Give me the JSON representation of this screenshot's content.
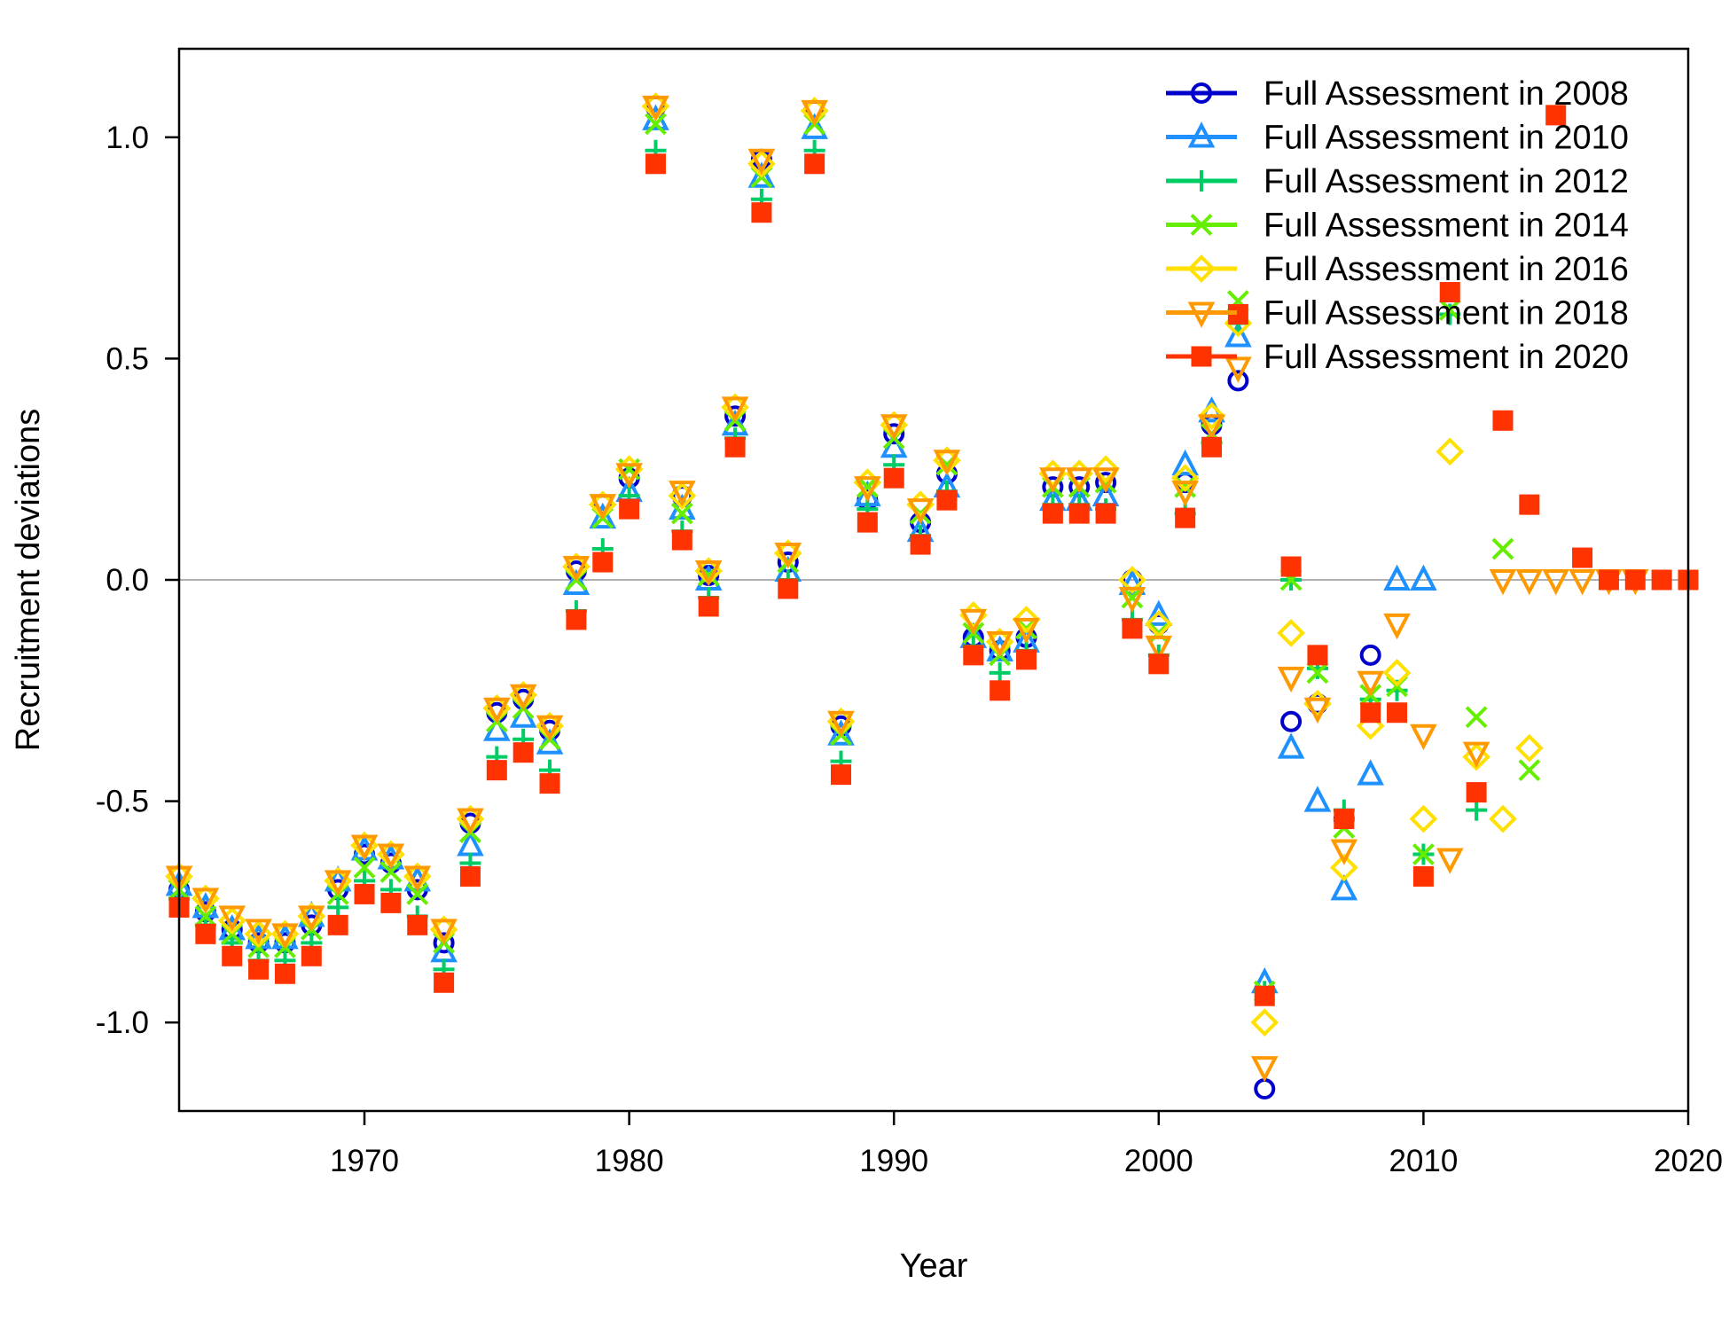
{
  "chart_data": {
    "type": "scatter",
    "title": "",
    "xlabel": "Year",
    "ylabel": "Recruitment deviations",
    "xlim": [
      1963,
      2020
    ],
    "ylim": [
      -1.2,
      1.2
    ],
    "xticks": [
      "1970",
      "1980",
      "1990",
      "2000",
      "2010",
      "2020"
    ],
    "yticks": [
      "-1.0",
      "-0.5",
      "0.0",
      "0.5",
      "1.0"
    ],
    "reference_line": 0,
    "legend_position": "top-right",
    "series": [
      {
        "name": "Full Assessment in 2008",
        "color": "#0000CC",
        "marker": "circle",
        "x": [
          1963,
          1964,
          1965,
          1966,
          1967,
          1968,
          1969,
          1970,
          1971,
          1972,
          1973,
          1974,
          1975,
          1976,
          1977,
          1978,
          1979,
          1980,
          1981,
          1982,
          1983,
          1984,
          1985,
          1986,
          1987,
          1988,
          1989,
          1990,
          1991,
          1992,
          1993,
          1994,
          1995,
          1996,
          1997,
          1998,
          1999,
          2000,
          2001,
          2002,
          2003,
          2004,
          2005,
          2006,
          2007,
          2008
        ],
        "y": [
          -0.7,
          -0.75,
          -0.79,
          -0.82,
          -0.82,
          -0.78,
          -0.7,
          -0.62,
          -0.64,
          -0.7,
          -0.82,
          -0.55,
          -0.3,
          -0.27,
          -0.34,
          0.02,
          0.17,
          0.23,
          1.07,
          0.19,
          0.01,
          0.37,
          0.95,
          0.04,
          1.06,
          -0.33,
          0.18,
          0.33,
          0.13,
          0.24,
          -0.13,
          -0.16,
          -0.13,
          0.21,
          0.21,
          0.22,
          0.0,
          -0.1,
          0.22,
          0.35,
          0.45,
          -1.15,
          -0.32,
          -0.28,
          -0.54,
          -0.17
        ]
      },
      {
        "name": "Full Assessment in 2010",
        "color": "#1E90FF",
        "marker": "triangle",
        "x": [
          1963,
          1964,
          1965,
          1966,
          1967,
          1968,
          1969,
          1970,
          1971,
          1972,
          1973,
          1974,
          1975,
          1976,
          1977,
          1978,
          1979,
          1980,
          1981,
          1982,
          1983,
          1984,
          1985,
          1986,
          1987,
          1988,
          1989,
          1990,
          1991,
          1992,
          1993,
          1994,
          1995,
          1996,
          1997,
          1998,
          1999,
          2000,
          2001,
          2002,
          2003,
          2004,
          2005,
          2006,
          2007,
          2008,
          2009,
          2010
        ],
        "y": [
          -0.69,
          -0.74,
          -0.79,
          -0.81,
          -0.81,
          -0.76,
          -0.68,
          -0.61,
          -0.63,
          -0.68,
          -0.84,
          -0.6,
          -0.34,
          -0.31,
          -0.37,
          -0.01,
          0.14,
          0.2,
          1.04,
          0.16,
          0.0,
          0.35,
          0.91,
          0.02,
          1.02,
          -0.35,
          0.19,
          0.3,
          0.11,
          0.21,
          -0.13,
          -0.16,
          -0.14,
          0.18,
          0.18,
          0.19,
          -0.01,
          -0.08,
          0.26,
          0.38,
          0.55,
          -0.91,
          -0.38,
          -0.5,
          -0.7,
          -0.44,
          0.0,
          0.0
        ]
      },
      {
        "name": "Full Assessment in 2012",
        "color": "#00CC66",
        "marker": "plus",
        "x": [
          1963,
          1964,
          1965,
          1966,
          1967,
          1968,
          1969,
          1970,
          1971,
          1972,
          1973,
          1974,
          1975,
          1976,
          1977,
          1978,
          1979,
          1980,
          1981,
          1982,
          1983,
          1984,
          1985,
          1986,
          1987,
          1988,
          1989,
          1990,
          1991,
          1992,
          1993,
          1994,
          1995,
          1996,
          1997,
          1998,
          1999,
          2000,
          2001,
          2002,
          2003,
          2004,
          2005,
          2006,
          2007,
          2008,
          2009,
          2010,
          2011,
          2012
        ],
        "y": [
          -0.72,
          -0.78,
          -0.82,
          -0.86,
          -0.86,
          -0.82,
          -0.74,
          -0.68,
          -0.7,
          -0.76,
          -0.88,
          -0.64,
          -0.4,
          -0.36,
          -0.43,
          -0.07,
          0.07,
          0.19,
          0.97,
          0.11,
          -0.04,
          0.32,
          0.86,
          0.0,
          0.97,
          -0.41,
          0.16,
          0.26,
          0.1,
          0.2,
          -0.15,
          -0.21,
          -0.16,
          0.17,
          0.17,
          0.16,
          -0.09,
          -0.17,
          0.15,
          0.31,
          0.58,
          -0.93,
          0.0,
          -0.2,
          -0.52,
          -0.27,
          -0.25,
          -0.62,
          0.6,
          -0.52
        ]
      },
      {
        "name": "Full Assessment in 2014",
        "color": "#66EE00",
        "marker": "x",
        "x": [
          1963,
          1964,
          1965,
          1966,
          1967,
          1968,
          1969,
          1970,
          1971,
          1972,
          1973,
          1974,
          1975,
          1976,
          1977,
          1978,
          1979,
          1980,
          1981,
          1982,
          1983,
          1984,
          1985,
          1986,
          1987,
          1988,
          1989,
          1990,
          1991,
          1992,
          1993,
          1994,
          1995,
          1996,
          1997,
          1998,
          1999,
          2000,
          2001,
          2002,
          2003,
          2004,
          2005,
          2006,
          2007,
          2008,
          2009,
          2010,
          2011,
          2012,
          2013,
          2014
        ],
        "y": [
          -0.7,
          -0.76,
          -0.8,
          -0.83,
          -0.83,
          -0.79,
          -0.71,
          -0.65,
          -0.66,
          -0.71,
          -0.82,
          -0.57,
          -0.32,
          -0.29,
          -0.36,
          0.0,
          0.14,
          0.25,
          1.03,
          0.15,
          0.01,
          0.36,
          0.91,
          0.04,
          1.03,
          -0.35,
          0.21,
          0.32,
          0.15,
          0.26,
          -0.12,
          -0.17,
          -0.11,
          0.21,
          0.21,
          0.22,
          -0.04,
          -0.12,
          0.21,
          0.33,
          0.63,
          -0.93,
          0.0,
          -0.21,
          -0.56,
          -0.26,
          -0.24,
          -0.62,
          0.61,
          -0.31,
          0.07,
          -0.43
        ]
      },
      {
        "name": "Full Assessment in 2016",
        "color": "#FFE000",
        "marker": "diamond",
        "x": [
          1963,
          1964,
          1965,
          1966,
          1967,
          1968,
          1969,
          1970,
          1971,
          1972,
          1973,
          1974,
          1975,
          1976,
          1977,
          1978,
          1979,
          1980,
          1981,
          1982,
          1983,
          1984,
          1985,
          1986,
          1987,
          1988,
          1989,
          1990,
          1991,
          1992,
          1993,
          1994,
          1995,
          1996,
          1997,
          1998,
          1999,
          2000,
          2001,
          2002,
          2003,
          2004,
          2005,
          2006,
          2007,
          2008,
          2009,
          2010,
          2011,
          2012,
          2013,
          2014
        ],
        "y": [
          -0.67,
          -0.72,
          -0.77,
          -0.8,
          -0.8,
          -0.76,
          -0.68,
          -0.6,
          -0.62,
          -0.67,
          -0.79,
          -0.54,
          -0.29,
          -0.26,
          -0.33,
          0.03,
          0.17,
          0.25,
          1.07,
          0.19,
          0.02,
          0.39,
          0.94,
          0.06,
          1.06,
          -0.32,
          0.22,
          0.35,
          0.17,
          0.27,
          -0.08,
          -0.14,
          -0.09,
          0.24,
          0.24,
          0.25,
          0.0,
          -0.1,
          0.23,
          0.37,
          0.58,
          -1.0,
          -0.12,
          -0.28,
          -0.65,
          -0.33,
          -0.21,
          -0.54,
          0.29,
          -0.4,
          -0.54,
          -0.38
        ]
      },
      {
        "name": "Full Assessment in 2018",
        "color": "#FF9900",
        "marker": "triangle-down",
        "x": [
          1963,
          1964,
          1965,
          1966,
          1967,
          1968,
          1969,
          1970,
          1971,
          1972,
          1973,
          1974,
          1975,
          1976,
          1977,
          1978,
          1979,
          1980,
          1981,
          1982,
          1983,
          1984,
          1985,
          1986,
          1987,
          1988,
          1989,
          1990,
          1991,
          1992,
          1993,
          1994,
          1995,
          1996,
          1997,
          1998,
          1999,
          2000,
          2001,
          2002,
          2003,
          2004,
          2005,
          2006,
          2007,
          2008,
          2009,
          2010,
          2011,
          2012,
          2013,
          2014,
          2015,
          2016,
          2017,
          2018
        ],
        "y": [
          -0.67,
          -0.72,
          -0.76,
          -0.79,
          -0.8,
          -0.76,
          -0.68,
          -0.6,
          -0.62,
          -0.67,
          -0.79,
          -0.54,
          -0.29,
          -0.26,
          -0.33,
          0.03,
          0.17,
          0.24,
          1.07,
          0.2,
          0.02,
          0.39,
          0.95,
          0.06,
          1.06,
          -0.32,
          0.21,
          0.35,
          0.16,
          0.27,
          -0.09,
          -0.14,
          -0.11,
          0.23,
          0.23,
          0.23,
          -0.04,
          -0.15,
          0.2,
          0.35,
          0.48,
          -1.1,
          -0.22,
          -0.29,
          -0.61,
          -0.23,
          -0.1,
          -0.35,
          -0.63,
          -0.39,
          0.0,
          0.0,
          0.0,
          0.0,
          0.0,
          0.0
        ]
      },
      {
        "name": "Full Assessment in 2020",
        "color": "#FF3300",
        "marker": "square",
        "x": [
          1963,
          1964,
          1965,
          1966,
          1967,
          1968,
          1969,
          1970,
          1971,
          1972,
          1973,
          1974,
          1975,
          1976,
          1977,
          1978,
          1979,
          1980,
          1981,
          1982,
          1983,
          1984,
          1985,
          1986,
          1987,
          1988,
          1989,
          1990,
          1991,
          1992,
          1993,
          1994,
          1995,
          1996,
          1997,
          1998,
          1999,
          2000,
          2001,
          2002,
          2003,
          2004,
          2005,
          2006,
          2007,
          2008,
          2009,
          2010,
          2011,
          2012,
          2013,
          2014,
          2015,
          2016,
          2017,
          2018,
          2019,
          2020
        ],
        "y": [
          -0.74,
          -0.8,
          -0.85,
          -0.88,
          -0.89,
          -0.85,
          -0.78,
          -0.71,
          -0.73,
          -0.78,
          -0.91,
          -0.67,
          -0.43,
          -0.39,
          -0.46,
          -0.09,
          0.04,
          0.16,
          0.94,
          0.09,
          -0.06,
          0.3,
          0.83,
          -0.02,
          0.94,
          -0.44,
          0.13,
          0.23,
          0.08,
          0.18,
          -0.17,
          -0.25,
          -0.18,
          0.15,
          0.15,
          0.15,
          -0.11,
          -0.19,
          0.14,
          0.3,
          0.6,
          -0.94,
          0.03,
          -0.17,
          -0.54,
          -0.3,
          -0.3,
          -0.67,
          0.65,
          -0.48,
          0.36,
          0.17,
          1.05,
          0.05,
          0.0,
          0.0,
          0.0,
          0.0
        ]
      }
    ]
  }
}
